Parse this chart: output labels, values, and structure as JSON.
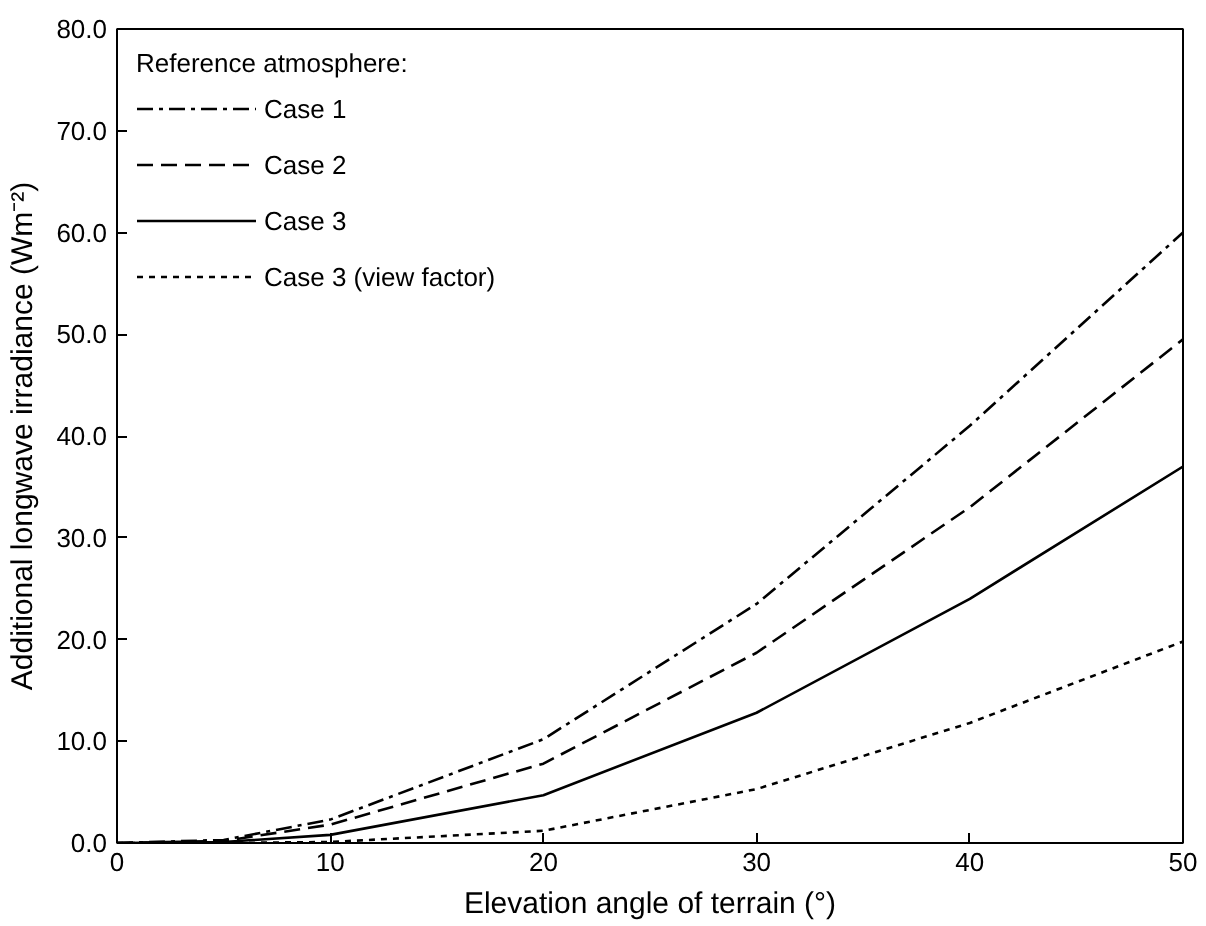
{
  "chart_data": {
    "type": "line",
    "xlabel": "Elevation angle of terrain (°)",
    "ylabel": "Additional longwave irradiance (Wm⁻²)",
    "legend_title": "Reference atmosphere:",
    "x": [
      0,
      5,
      10,
      20,
      30,
      40,
      50
    ],
    "series": [
      {
        "name": "Case 1",
        "color": "#000000",
        "line_style": "dashdot",
        "values": [
          0,
          0.3,
          2.3,
          10.2,
          23.5,
          41,
          60
        ]
      },
      {
        "name": "Case 2",
        "color": "#000000",
        "line_style": "dashed",
        "values": [
          0,
          0.2,
          1.8,
          7.8,
          18.7,
          33,
          49.5
        ]
      },
      {
        "name": "Case 3",
        "color": "#000000",
        "line_style": "solid",
        "values": [
          0,
          0.1,
          0.8,
          4.7,
          12.8,
          24,
          37
        ]
      },
      {
        "name": "Case 3 (view factor)",
        "color": "#000000",
        "line_style": "dotted",
        "values": [
          0,
          0,
          0.1,
          1.2,
          5.3,
          11.8,
          19.8
        ]
      }
    ],
    "xlim": [
      0,
      50
    ],
    "xticks": [
      0,
      10,
      20,
      30,
      40,
      50
    ],
    "ylim": [
      0,
      80
    ],
    "yticks": [
      {
        "value": 0,
        "label": "0.0"
      },
      {
        "value": 10,
        "label": "10.0"
      },
      {
        "value": 20,
        "label": "20.0"
      },
      {
        "value": 30,
        "label": "30.0"
      },
      {
        "value": 40,
        "label": "40.0"
      },
      {
        "value": 50,
        "label": "50.0"
      },
      {
        "value": 60,
        "label": "60.0"
      },
      {
        "value": 70,
        "label": "70.0"
      },
      {
        "value": 80,
        "label": "80.0"
      }
    ],
    "grid": false,
    "legend": "top left",
    "marker": "none"
  }
}
